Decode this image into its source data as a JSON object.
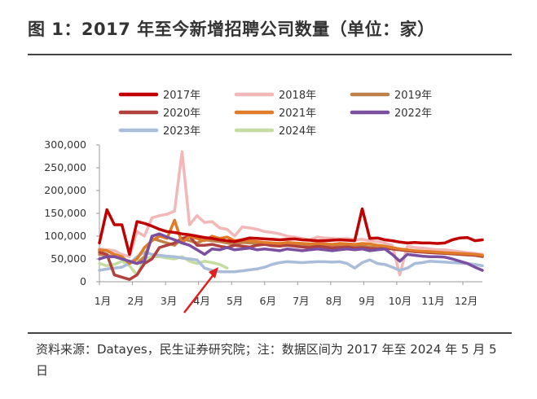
{
  "title": "图 1：2017 年至今新增招聘公司数量（单位：家）",
  "source": "资料来源：Datayes，民生证券研究院；注：数据区间为 2017 年至 2024 年 5 月 5 日",
  "colors": {
    "2017年": "#c00000",
    "2018年": "#f2b8b8",
    "2019年": "#c0804a",
    "2020年": "#b0413e",
    "2021年": "#e07b28",
    "2022年": "#7b4fa0",
    "2023年": "#a9bcd9",
    "2024年": "#c5dca0",
    "arrow": "#e02020"
  },
  "chart_data": {
    "type": "line",
    "title": "",
    "xlabel": "",
    "ylabel": "",
    "ylim": [
      0,
      300000
    ],
    "yticks": [
      "0",
      "50,000",
      "100,000",
      "150,000",
      "200,000",
      "250,000",
      "300,000"
    ],
    "xticks": [
      "1月",
      "2月",
      "3月",
      "4月",
      "5月",
      "6月",
      "7月",
      "8月",
      "9月",
      "10月",
      "11月",
      "12月"
    ],
    "legend": [
      "2017年",
      "2018年",
      "2019年",
      "2020年",
      "2021年",
      "2022年",
      "2023年",
      "2024年"
    ],
    "legend_position": "top",
    "x_unit": "week of year (1-52)",
    "series": [
      {
        "name": "2017年",
        "x": [
          1,
          2,
          3,
          4,
          5,
          6,
          7,
          8,
          9,
          10,
          11,
          12,
          13,
          14,
          15,
          16,
          17,
          18,
          19,
          20,
          21,
          22,
          23,
          24,
          25,
          26,
          27,
          28,
          29,
          30,
          31,
          32,
          33,
          34,
          35,
          36,
          37,
          38,
          39,
          40,
          41,
          42,
          43,
          44,
          45,
          46,
          47,
          48,
          49,
          50,
          51,
          52
        ],
        "values": [
          85000,
          158000,
          125000,
          125000,
          60000,
          132000,
          128000,
          122000,
          115000,
          110000,
          108000,
          105000,
          103000,
          100000,
          97000,
          95000,
          92000,
          90000,
          88000,
          92000,
          96000,
          95000,
          94000,
          93000,
          92000,
          93000,
          94000,
          92000,
          91000,
          90000,
          90000,
          91000,
          92000,
          91000,
          90000,
          160000,
          95000,
          96000,
          92000,
          90000,
          87000,
          85000,
          86000,
          85000,
          85000,
          84000,
          85000,
          92000,
          96000,
          97000,
          90000,
          92000
        ]
      },
      {
        "name": "2018年",
        "x": [
          1,
          2,
          3,
          4,
          5,
          6,
          7,
          8,
          9,
          10,
          11,
          12,
          13,
          14,
          15,
          16,
          17,
          18,
          19,
          20,
          21,
          22,
          23,
          24,
          25,
          26,
          27,
          28,
          29,
          30,
          31,
          32,
          33,
          34,
          35,
          36,
          37,
          38,
          39,
          40,
          41,
          42,
          43,
          44,
          45,
          46,
          47,
          48,
          49,
          50,
          51,
          52
        ],
        "values": [
          72000,
          70000,
          68000,
          60000,
          55000,
          110000,
          100000,
          140000,
          145000,
          148000,
          155000,
          285000,
          125000,
          145000,
          130000,
          132000,
          118000,
          115000,
          100000,
          120000,
          118000,
          115000,
          110000,
          108000,
          105000,
          100000,
          98000,
          95000,
          92000,
          98000,
          96000,
          95000,
          94000,
          95000,
          92000,
          93000,
          90000,
          88000,
          85000,
          80000,
          15000,
          78000,
          75000,
          74000,
          72000,
          70000,
          70000,
          68000,
          66000,
          64000,
          62000,
          60000
        ]
      },
      {
        "name": "2019年",
        "x": [
          1,
          2,
          3,
          4,
          5,
          6,
          7,
          8,
          9,
          10,
          11,
          12,
          13,
          14,
          15,
          16,
          17,
          18,
          19,
          20,
          21,
          22,
          23,
          24,
          25,
          26,
          27,
          28,
          29,
          30,
          31,
          32,
          33,
          34,
          35,
          36,
          37,
          38,
          39,
          40,
          41,
          42,
          43,
          44,
          45,
          46,
          47,
          48,
          49,
          50,
          51,
          52
        ],
        "values": [
          60000,
          58000,
          55000,
          50000,
          45000,
          40000,
          55000,
          95000,
          90000,
          85000,
          80000,
          95000,
          90000,
          85000,
          92000,
          90000,
          88000,
          85000,
          82000,
          86000,
          85000,
          84000,
          83000,
          82000,
          84000,
          83000,
          82000,
          81000,
          80000,
          82000,
          81000,
          80000,
          79000,
          78000,
          80000,
          78000,
          76000,
          75000,
          78000,
          72000,
          70000,
          68000,
          66000,
          66000,
          65000,
          64000,
          63000,
          62000,
          61000,
          60000,
          58000,
          55000
        ]
      },
      {
        "name": "2020年",
        "x": [
          1,
          2,
          3,
          4,
          5,
          6,
          7,
          8,
          9,
          10,
          11,
          12,
          13,
          14,
          15,
          16,
          17,
          18,
          19,
          20,
          21,
          22,
          23,
          24,
          25,
          26,
          27,
          28,
          29,
          30,
          31,
          32,
          33,
          34,
          35,
          36,
          37,
          38,
          39,
          40,
          41,
          42,
          43,
          44,
          45,
          46,
          47,
          48,
          49,
          50,
          51,
          52
        ],
        "values": [
          65000,
          60000,
          15000,
          10000,
          5000,
          15000,
          40000,
          50000,
          75000,
          80000,
          85000,
          95000,
          100000,
          80000,
          80000,
          82000,
          78000,
          75000,
          80000,
          78000,
          76000,
          80000,
          82000,
          79000,
          78000,
          80000,
          78000,
          76000,
          75000,
          78000,
          76000,
          74000,
          75000,
          76000,
          74000,
          75000,
          73000,
          72000,
          74000,
          72000,
          70000,
          68000,
          66000,
          65000,
          64000,
          63000,
          62000,
          61000,
          60000,
          59000,
          58000,
          56000
        ]
      },
      {
        "name": "2021年",
        "x": [
          1,
          2,
          3,
          4,
          5,
          6,
          7,
          8,
          9,
          10,
          11,
          12,
          13,
          14,
          15,
          16,
          17,
          18,
          19,
          20,
          21,
          22,
          23,
          24,
          25,
          26,
          27,
          28,
          29,
          30,
          31,
          32,
          33,
          34,
          35,
          36,
          37,
          38,
          39,
          40,
          41,
          42,
          43,
          44,
          45,
          46,
          47,
          48,
          49,
          50,
          51,
          52
        ],
        "values": [
          70000,
          68000,
          60000,
          55000,
          40000,
          50000,
          75000,
          90000,
          100000,
          95000,
          135000,
          85000,
          100000,
          95000,
          90000,
          100000,
          95000,
          98000,
          90000,
          92000,
          90000,
          88000,
          86000,
          85000,
          84000,
          86000,
          85000,
          84000,
          83000,
          84000,
          83000,
          82000,
          84000,
          83000,
          82000,
          84000,
          83000,
          80000,
          78000,
          75000,
          72000,
          70000,
          68000,
          67000,
          66000,
          65000,
          64000,
          63000,
          62000,
          61000,
          60000,
          58000
        ]
      },
      {
        "name": "2022年",
        "x": [
          1,
          2,
          3,
          4,
          5,
          6,
          7,
          8,
          9,
          10,
          11,
          12,
          13,
          14,
          15,
          16,
          17,
          18,
          19,
          20,
          21,
          22,
          23,
          24,
          25,
          26,
          27,
          28,
          29,
          30,
          31,
          32,
          33,
          34,
          35,
          36,
          37,
          38,
          39,
          40,
          41,
          42,
          43,
          44,
          45,
          46,
          47,
          48,
          49,
          50,
          51,
          52
        ],
        "values": [
          50000,
          55000,
          55000,
          50000,
          45000,
          40000,
          45000,
          100000,
          105000,
          98000,
          92000,
          85000,
          80000,
          70000,
          60000,
          72000,
          70000,
          75000,
          70000,
          72000,
          74000,
          70000,
          72000,
          70000,
          68000,
          72000,
          70000,
          68000,
          70000,
          72000,
          70000,
          68000,
          70000,
          72000,
          70000,
          72000,
          68000,
          70000,
          72000,
          60000,
          45000,
          60000,
          58000,
          56000,
          55000,
          55000,
          54000,
          50000,
          45000,
          40000,
          32000,
          25000
        ]
      },
      {
        "name": "2023年",
        "x": [
          1,
          2,
          3,
          4,
          5,
          6,
          7,
          8,
          9,
          10,
          11,
          12,
          13,
          14,
          15,
          16,
          17,
          18,
          19,
          20,
          21,
          22,
          23,
          24,
          25,
          26,
          27,
          28,
          29,
          30,
          31,
          32,
          33,
          34,
          35,
          36,
          37,
          38,
          39,
          40,
          41,
          42,
          43,
          44,
          45,
          46,
          47,
          48,
          49,
          50,
          51,
          52
        ],
        "values": [
          25000,
          28000,
          30000,
          32000,
          40000,
          55000,
          65000,
          60000,
          58000,
          56000,
          55000,
          52000,
          50000,
          48000,
          30000,
          25000,
          22000,
          22000,
          22000,
          24000,
          26000,
          28000,
          32000,
          38000,
          42000,
          44000,
          43000,
          42000,
          43000,
          44000,
          44000,
          43000,
          44000,
          40000,
          30000,
          42000,
          48000,
          40000,
          38000,
          32000,
          25000,
          30000,
          40000,
          42000,
          45000,
          44000,
          43000,
          42000,
          41000,
          40000,
          38000,
          35000
        ]
      },
      {
        "name": "2024年",
        "x": [
          1,
          2,
          3,
          4,
          5,
          6,
          7,
          8,
          9,
          10,
          11,
          12,
          13,
          14,
          15,
          16,
          17,
          18
        ],
        "values": [
          40000,
          35000,
          38000,
          45000,
          35000,
          15000,
          50000,
          55000,
          55000,
          52000,
          50000,
          55000,
          45000,
          40000,
          45000,
          42000,
          38000,
          30000
        ]
      }
    ]
  }
}
